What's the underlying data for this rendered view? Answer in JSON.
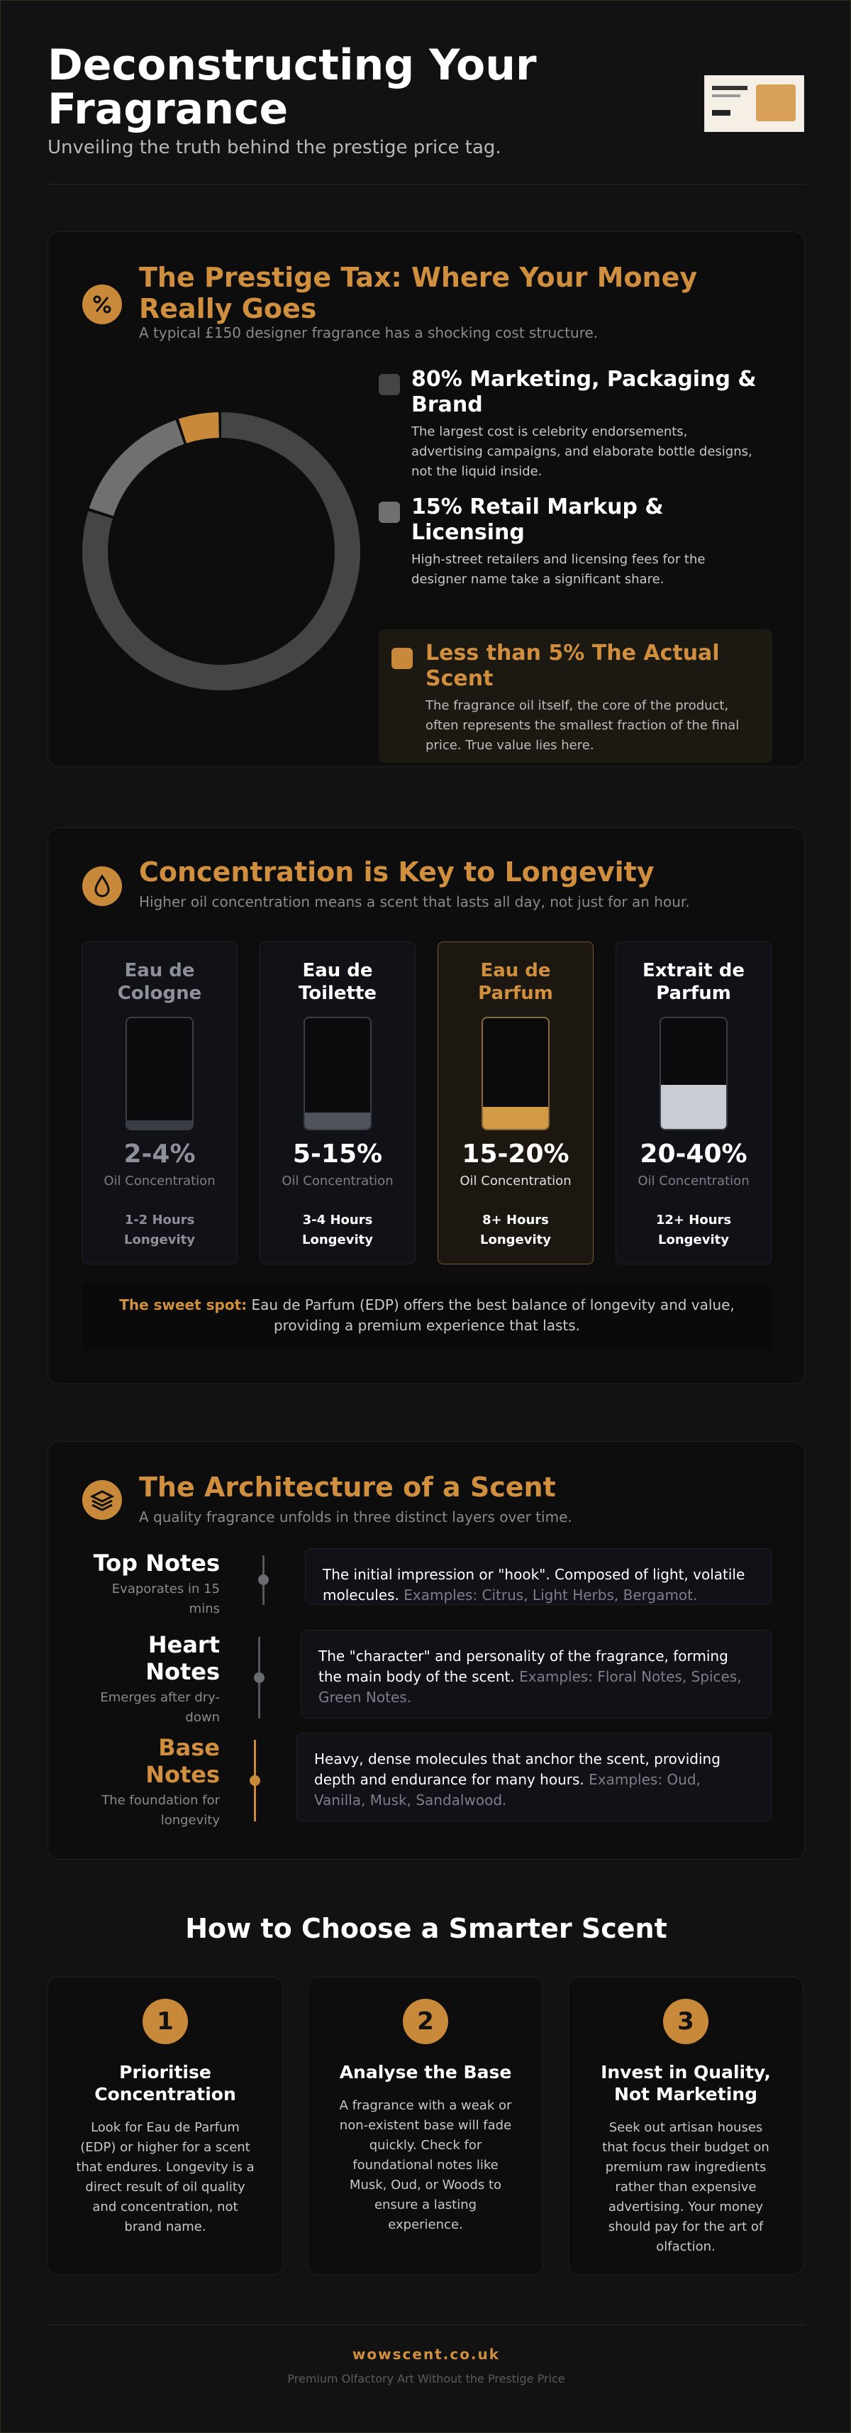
{
  "header": {
    "title": "Deconstructing Your Fragrance",
    "subtitle": "Unveiling the truth behind the prestige price tag."
  },
  "prestige": {
    "title": "The Prestige Tax: Where Your Money Really Goes",
    "subtitle": "A typical £150 designer fragrance has a shocking cost structure.",
    "segments": [
      {
        "heading": "80% Marketing, Packaging & Brand",
        "text": "The largest cost is celebrity endorsements, advertising campaigns, and elaborate bottle designs, not the liquid inside.",
        "value": 80,
        "color": "#454545"
      },
      {
        "heading": "15% Retail Markup & Licensing",
        "text": "High-street retailers and licensing fees for the designer name take a significant share.",
        "value": 15,
        "color": "#707070"
      },
      {
        "heading": "Less than 5% The Actual Scent",
        "text": "The fragrance oil itself, the core of the product, often represents the smallest fraction of the final price. True value lies here.",
        "value": 5,
        "color": "#c8893a"
      }
    ]
  },
  "concentration": {
    "title": "Concentration is Key to Longevity",
    "subtitle": "Higher oil concentration means a scent that lasts all day, not just for an hour.",
    "cards": [
      {
        "name": "Eau de Cologne",
        "range": "2-4%",
        "label": "Oil Concentration",
        "hours": "1-2 Hours",
        "longevity": "Longevity",
        "fill": 8,
        "color": "#3a3d45",
        "highlighted": false
      },
      {
        "name": "Eau de Toilette",
        "range": "5-15%",
        "label": "Oil Concentration",
        "hours": "3-4 Hours",
        "longevity": "Longevity",
        "fill": 15,
        "color": "#50535c",
        "highlighted": false
      },
      {
        "name": "Eau de Parfum",
        "range": "15-20%",
        "label": "Oil Concentration",
        "hours": "8+ Hours",
        "longevity": "Longevity",
        "fill": 20,
        "color": "#d39a45",
        "highlighted": true
      },
      {
        "name": "Extrait de Parfum",
        "range": "20-40%",
        "label": "Oil Concentration",
        "hours": "12+ Hours",
        "longevity": "Longevity",
        "fill": 40,
        "color": "#c9ccd3",
        "highlighted": false
      }
    ],
    "note": {
      "lead": "The sweet spot:",
      "text": "Eau de Parfum (EDP) offers the best balance of longevity and value, providing a premium experience that lasts."
    }
  },
  "architecture": {
    "title": "The Architecture of a Scent",
    "subtitle": "A quality fragrance unfolds in three distinct layers over time.",
    "notes": [
      {
        "name": "Top Notes",
        "timing": "Evaporates in 15 mins",
        "text": "The initial impression or \"hook\". Composed of light, volatile molecules.",
        "examples": "Examples: Citrus, Light Herbs, Bergamot.",
        "highlighted": false
      },
      {
        "name": "Heart Notes",
        "timing": "Emerges after dry-down",
        "text": "The \"character\" and personality of the fragrance, forming the main body of the scent.",
        "examples": "Examples: Floral Notes, Spices, Green Notes.",
        "highlighted": false
      },
      {
        "name": "Base Notes",
        "timing": "The foundation for longevity",
        "text": "Heavy, dense molecules that anchor the scent, providing depth and endurance for many hours.",
        "examples": "Examples: Oud, Vanilla, Musk, Sandalwood.",
        "highlighted": true
      }
    ]
  },
  "guide": {
    "title": "How to Choose a Smarter Scent",
    "steps": [
      {
        "number": 1,
        "title": "Prioritise Concentration",
        "text": "Look for Eau de Parfum (EDP) or higher for a scent that endures. Longevity is a direct result of oil quality and concentration, not brand name."
      },
      {
        "number": 2,
        "title": "Analyse the Base",
        "text": "A fragrance with a weak or non-existent base will fade quickly. Check for foundational notes like Musk, Oud, or Woods to ensure a lasting experience."
      },
      {
        "number": 3,
        "title": "Invest in Quality, Not Marketing",
        "text": "Seek out artisan houses that focus their budget on premium raw ingredients rather than expensive advertising. Your money should pay for the art of olfaction."
      }
    ]
  },
  "footer": {
    "site": "wowscent.co.uk",
    "tagline": "Premium Olfactory Art Without the Prestige Price"
  }
}
